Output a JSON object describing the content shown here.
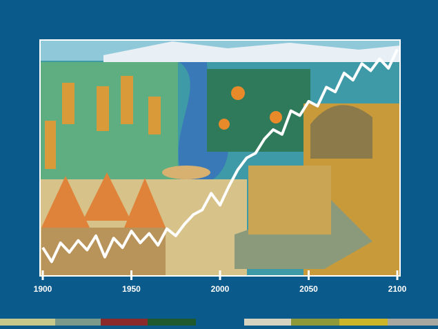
{
  "chart_data": {
    "type": "line",
    "x": [
      1900,
      1905,
      1910,
      1915,
      1920,
      1925,
      1930,
      1935,
      1940,
      1945,
      1950,
      1955,
      1960,
      1965,
      1970,
      1975,
      1980,
      1985,
      1990,
      1995,
      2000,
      2005,
      2010,
      2015,
      2020,
      2025,
      2030,
      2035,
      2040,
      2045,
      2050,
      2055,
      2060,
      2065,
      2070,
      2075,
      2080,
      2085,
      2090,
      2095,
      2100
    ],
    "values": [
      12,
      6,
      14,
      10,
      15,
      11,
      17,
      8,
      16,
      12,
      19,
      14,
      18,
      13,
      20,
      17,
      22,
      26,
      28,
      35,
      30,
      38,
      45,
      50,
      52,
      58,
      62,
      60,
      70,
      68,
      74,
      72,
      80,
      78,
      86,
      83,
      90,
      87,
      92,
      88,
      96
    ],
    "color": "#ffffff",
    "xlim": [
      1900,
      2100
    ],
    "xticks": [
      1900,
      1950,
      2000,
      2050,
      2100
    ],
    "ylim": [
      0,
      100
    ]
  }
}
